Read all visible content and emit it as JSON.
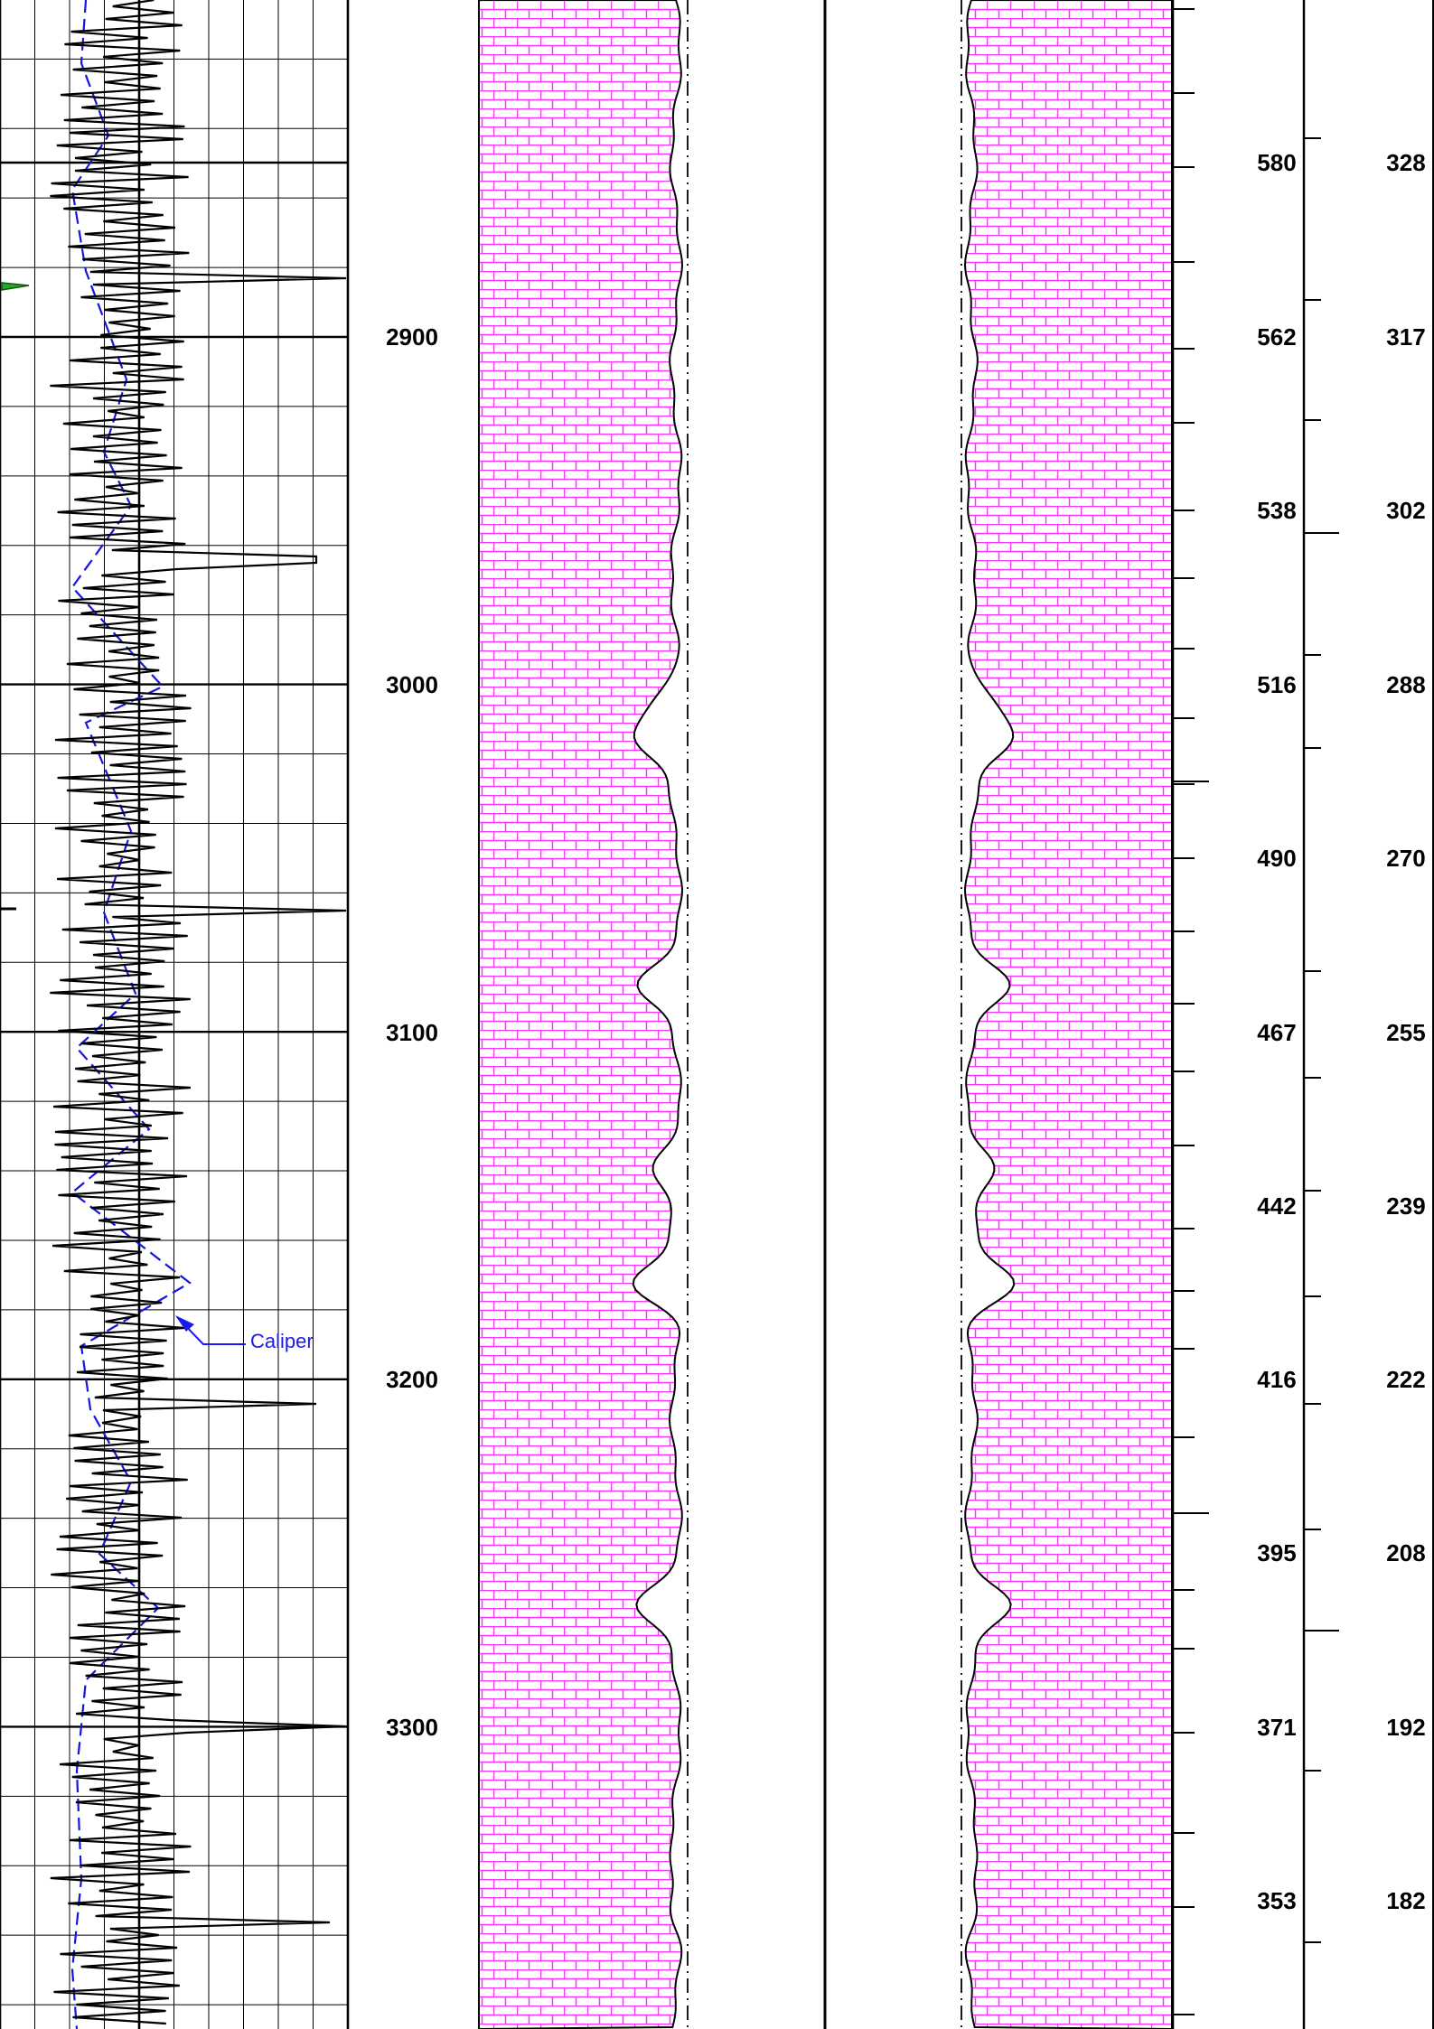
{
  "colors": {
    "grid": "#000000",
    "gamma_curve": "#000000",
    "caliper_curve": "#1515e0",
    "lithology_fill": "#ff33ff",
    "lithology_background": "#ffffff",
    "marker": "#22aa22",
    "annotation": "#1a1aee"
  },
  "depth_track": {
    "labels": [
      "2900",
      "3000",
      "3100",
      "3200",
      "3300"
    ]
  },
  "scale_track_1": {
    "labels": [
      "580",
      "562",
      "538",
      "516",
      "490",
      "467",
      "442",
      "416",
      "395",
      "371",
      "353"
    ]
  },
  "scale_track_2": {
    "labels": [
      "328",
      "317",
      "302",
      "288",
      "270",
      "255",
      "239",
      "222",
      "208",
      "192",
      "182"
    ]
  },
  "annotations": {
    "caliper_label": "Caliper"
  },
  "lithology": {
    "pattern": "limestone-brick"
  }
}
